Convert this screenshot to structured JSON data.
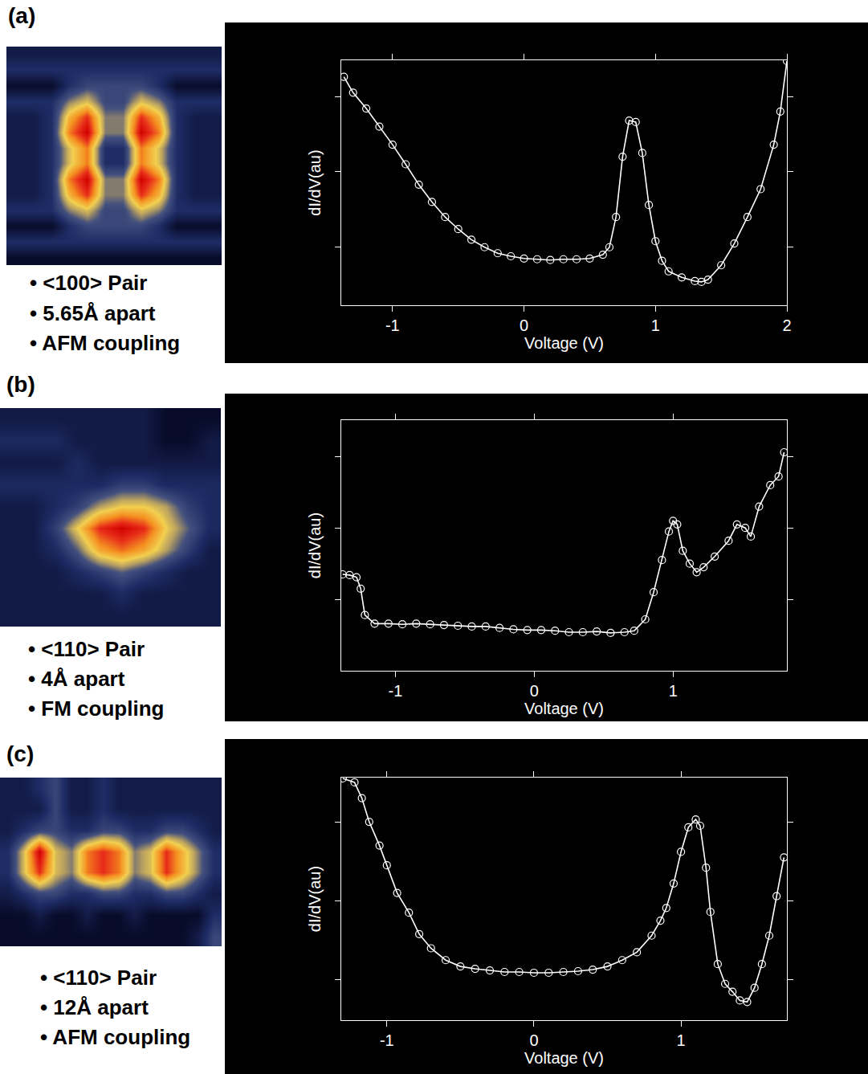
{
  "chart_data": [
    {
      "type": "heatmap",
      "title": "(a)",
      "annotations": [
        "• <100> Pair",
        "• 5.65Å apart",
        "• AFM coupling"
      ],
      "tick_labels": false,
      "cells": [
        [
          2,
          2,
          2,
          2,
          2,
          2,
          2,
          2,
          2,
          2,
          2,
          2
        ],
        [
          3,
          3,
          3,
          3,
          3,
          3,
          3,
          3,
          3,
          3,
          3,
          3
        ],
        [
          1,
          1,
          1,
          3,
          4,
          4,
          4,
          4,
          3,
          1,
          1,
          1
        ],
        [
          3,
          3,
          3,
          5,
          6,
          4,
          4,
          6,
          5,
          3,
          3,
          3
        ],
        [
          2,
          2,
          3,
          7,
          9,
          5,
          5,
          9,
          7,
          3,
          2,
          2
        ],
        [
          2,
          2,
          3,
          8,
          10,
          5,
          5,
          10,
          8,
          3,
          2,
          2
        ],
        [
          2,
          2,
          3,
          6,
          8,
          3,
          3,
          8,
          6,
          3,
          2,
          2
        ],
        [
          2,
          2,
          3,
          6,
          8,
          3,
          3,
          8,
          6,
          3,
          2,
          2
        ],
        [
          2,
          2,
          3,
          8,
          10,
          5,
          5,
          10,
          8,
          3,
          2,
          2
        ],
        [
          2,
          2,
          3,
          7,
          9,
          5,
          5,
          9,
          7,
          3,
          2,
          2
        ],
        [
          3,
          3,
          3,
          5,
          6,
          4,
          4,
          6,
          5,
          3,
          3,
          3
        ],
        [
          1,
          1,
          1,
          3,
          4,
          4,
          4,
          4,
          3,
          1,
          1,
          1
        ],
        [
          3,
          3,
          3,
          3,
          3,
          3,
          3,
          3,
          3,
          3,
          3,
          3
        ],
        [
          1,
          1,
          1,
          1,
          1,
          1,
          1,
          1,
          1,
          1,
          1,
          1
        ]
      ]
    },
    {
      "type": "line",
      "xlabel": "Voltage (V)",
      "ylabel": "dI/dV(au)",
      "xlim": [
        -1.39,
        2.0
      ],
      "ylim": [
        0.23,
        3.48
      ],
      "xticks": [
        -1,
        0,
        1,
        2
      ],
      "yticks": [
        1,
        2,
        3
      ],
      "tick_labels": "x",
      "x": [
        -1.37,
        -1.3,
        -1.2,
        -1.1,
        -1.0,
        -0.9,
        -0.8,
        -0.7,
        -0.6,
        -0.5,
        -0.4,
        -0.3,
        -0.2,
        -0.1,
        0,
        0.1,
        0.2,
        0.3,
        0.4,
        0.5,
        0.6,
        0.65,
        0.7,
        0.75,
        0.8,
        0.85,
        0.9,
        0.95,
        1.0,
        1.05,
        1.1,
        1.2,
        1.3,
        1.35,
        1.4,
        1.5,
        1.6,
        1.7,
        1.8,
        1.9,
        1.95,
        2.0
      ],
      "series": [
        {
          "color": "#ffffff",
          "marker": "circle-open",
          "line_style": "solid",
          "values": [
            3.26,
            3.05,
            2.84,
            2.6,
            2.36,
            2.1,
            1.83,
            1.6,
            1.4,
            1.24,
            1.1,
            1.0,
            0.92,
            0.88,
            0.85,
            0.84,
            0.83,
            0.84,
            0.84,
            0.85,
            0.9,
            1.0,
            1.4,
            2.2,
            2.68,
            2.66,
            2.25,
            1.56,
            1.08,
            0.82,
            0.68,
            0.6,
            0.55,
            0.54,
            0.57,
            0.76,
            1.05,
            1.4,
            1.77,
            2.36,
            2.8,
            3.47
          ]
        }
      ]
    },
    {
      "type": "heatmap",
      "title": "(b)",
      "annotations": [
        "• <110> Pair",
        "• 4Å apart",
        "• FM coupling"
      ],
      "tick_labels": false,
      "cells": [
        [
          1,
          1,
          1,
          1,
          1,
          1,
          1,
          0,
          0,
          0
        ],
        [
          2,
          2,
          2,
          1,
          1,
          1,
          1,
          0,
          0,
          1
        ],
        [
          1,
          1,
          1,
          2,
          1,
          1,
          1,
          1,
          1,
          1
        ],
        [
          2,
          2,
          2,
          2,
          2,
          3,
          3,
          2,
          2,
          2
        ],
        [
          1,
          1,
          2,
          3,
          5,
          6,
          6,
          5,
          3,
          2
        ],
        [
          1,
          1,
          3,
          6,
          9,
          10,
          9,
          6,
          4,
          2
        ],
        [
          1,
          1,
          2,
          4,
          7,
          8,
          7,
          5,
          3,
          1
        ],
        [
          1,
          1,
          1,
          2,
          3,
          4,
          3,
          2,
          1,
          1
        ],
        [
          1,
          1,
          1,
          1,
          1,
          2,
          1,
          1,
          1,
          1
        ],
        [
          1,
          1,
          1,
          1,
          1,
          1,
          1,
          1,
          1,
          1
        ]
      ]
    },
    {
      "type": "line",
      "xlabel": "Voltage (V)",
      "ylabel": "dI/dV(au)",
      "xlim": [
        -1.39,
        1.82
      ],
      "ylim": [
        0,
        3.51
      ],
      "xticks": [
        -1,
        0,
        1
      ],
      "yticks": [
        1,
        2,
        3
      ],
      "tick_labels": "x",
      "x": [
        -1.38,
        -1.33,
        -1.28,
        -1.25,
        -1.22,
        -1.15,
        -1.05,
        -0.95,
        -0.85,
        -0.75,
        -0.65,
        -0.55,
        -0.45,
        -0.35,
        -0.25,
        -0.15,
        -0.05,
        0.05,
        0.15,
        0.25,
        0.35,
        0.45,
        0.55,
        0.65,
        0.72,
        0.8,
        0.86,
        0.92,
        0.97,
        1.0,
        1.03,
        1.07,
        1.12,
        1.17,
        1.22,
        1.3,
        1.4,
        1.46,
        1.52,
        1.56,
        1.62,
        1.7,
        1.76,
        1.8
      ],
      "series": [
        {
          "color": "#ffffff",
          "marker": "circle-open",
          "line_style": "solid",
          "values": [
            1.35,
            1.34,
            1.31,
            1.15,
            0.78,
            0.66,
            0.66,
            0.65,
            0.66,
            0.65,
            0.64,
            0.63,
            0.62,
            0.62,
            0.6,
            0.58,
            0.57,
            0.57,
            0.56,
            0.54,
            0.54,
            0.55,
            0.53,
            0.54,
            0.56,
            0.72,
            1.1,
            1.55,
            1.95,
            2.1,
            2.05,
            1.68,
            1.5,
            1.38,
            1.45,
            1.6,
            1.82,
            2.05,
            2.0,
            1.88,
            2.3,
            2.6,
            2.72,
            3.06
          ]
        }
      ]
    },
    {
      "type": "heatmap",
      "title": "(c)",
      "annotations": [
        "• <110> Pair",
        "• 12Å apart",
        "• AFM coupling"
      ],
      "tick_labels": false,
      "cells": [
        [
          2,
          2,
          3,
          4,
          2,
          2,
          3,
          2,
          2,
          2,
          2,
          2,
          2,
          2
        ],
        [
          2,
          2,
          2,
          4,
          2,
          2,
          3,
          2,
          2,
          2,
          2,
          2,
          2,
          2
        ],
        [
          2,
          3,
          4,
          4,
          3,
          3,
          4,
          4,
          3,
          3,
          4,
          4,
          3,
          2
        ],
        [
          3,
          6,
          10,
          6,
          5,
          8,
          9,
          8,
          5,
          6,
          9,
          7,
          5,
          3
        ],
        [
          3,
          6,
          9,
          6,
          5,
          8,
          9,
          8,
          5,
          6,
          9,
          7,
          5,
          3
        ],
        [
          2,
          3,
          4,
          4,
          3,
          3,
          4,
          4,
          3,
          3,
          4,
          4,
          3,
          2
        ],
        [
          1,
          1,
          2,
          1,
          1,
          2,
          1,
          1,
          2,
          1,
          1,
          1,
          1,
          3
        ],
        [
          1,
          1,
          1,
          1,
          1,
          1,
          1,
          1,
          1,
          1,
          1,
          1,
          2,
          4
        ]
      ]
    },
    {
      "type": "line",
      "xlabel": "Voltage (V)",
      "ylabel": "dI/dV(au)",
      "xlim": [
        -1.31,
        1.72
      ],
      "ylim": [
        0.49,
        3.56
      ],
      "xticks": [
        -1,
        0,
        1
      ],
      "yticks": [
        1,
        2,
        3
      ],
      "tick_labels": "x",
      "x": [
        -1.3,
        -1.22,
        -1.17,
        -1.12,
        -1.05,
        -1.0,
        -0.93,
        -0.85,
        -0.78,
        -0.7,
        -0.6,
        -0.5,
        -0.4,
        -0.3,
        -0.2,
        -0.1,
        0,
        0.1,
        0.2,
        0.3,
        0.4,
        0.5,
        0.6,
        0.7,
        0.8,
        0.86,
        0.9,
        0.95,
        1.0,
        1.05,
        1.1,
        1.13,
        1.17,
        1.2,
        1.25,
        1.3,
        1.35,
        1.4,
        1.45,
        1.5,
        1.55,
        1.6,
        1.65,
        1.7
      ],
      "series": [
        {
          "color": "#ffffff",
          "marker": "circle-open",
          "line_style": "solid",
          "values": [
            3.55,
            3.5,
            3.3,
            3.0,
            2.7,
            2.45,
            2.1,
            1.85,
            1.58,
            1.4,
            1.25,
            1.17,
            1.14,
            1.12,
            1.1,
            1.1,
            1.09,
            1.09,
            1.1,
            1.11,
            1.13,
            1.17,
            1.25,
            1.35,
            1.56,
            1.75,
            1.91,
            2.22,
            2.62,
            2.93,
            3.03,
            2.95,
            2.42,
            1.86,
            1.2,
            0.95,
            0.85,
            0.74,
            0.72,
            0.9,
            1.2,
            1.56,
            2.06,
            2.55
          ]
        }
      ]
    }
  ]
}
